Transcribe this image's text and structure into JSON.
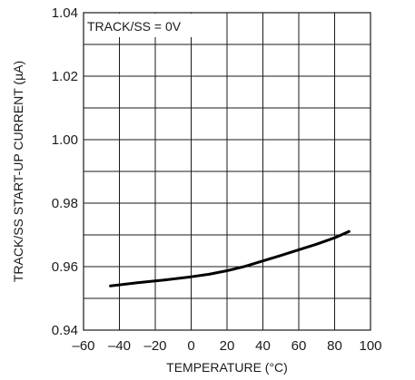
{
  "chart_data": {
    "type": "line",
    "title": "",
    "xlabel": "TEMPERATURE (°C)",
    "ylabel": "TRACK/SS START-UP CURRENT (µA)",
    "xlim": [
      -60,
      100
    ],
    "ylim": [
      0.94,
      1.04
    ],
    "xticks": [
      -60,
      -40,
      -20,
      0,
      20,
      40,
      60,
      80,
      100
    ],
    "xtick_labels": [
      "–60",
      "–40",
      "–20",
      "0",
      "20",
      "40",
      "60",
      "80",
      "100"
    ],
    "yticks": [
      0.94,
      0.96,
      0.98,
      1.0,
      1.02,
      1.04
    ],
    "ytick_labels": [
      "0.94",
      "0.96",
      "0.98",
      "1.00",
      "1.02",
      "1.04"
    ],
    "grid": true,
    "annotation": "TRACK/SS = 0V",
    "series": [
      {
        "x": [
          -45,
          -30,
          -15,
          0,
          10,
          20,
          30,
          40,
          50,
          60,
          70,
          80,
          88
        ],
        "y": [
          0.9539,
          0.9549,
          0.9558,
          0.9568,
          0.9576,
          0.9587,
          0.9601,
          0.9618,
          0.9635,
          0.9653,
          0.9671,
          0.9691,
          0.9711
        ]
      }
    ],
    "line_color": "#000000"
  }
}
